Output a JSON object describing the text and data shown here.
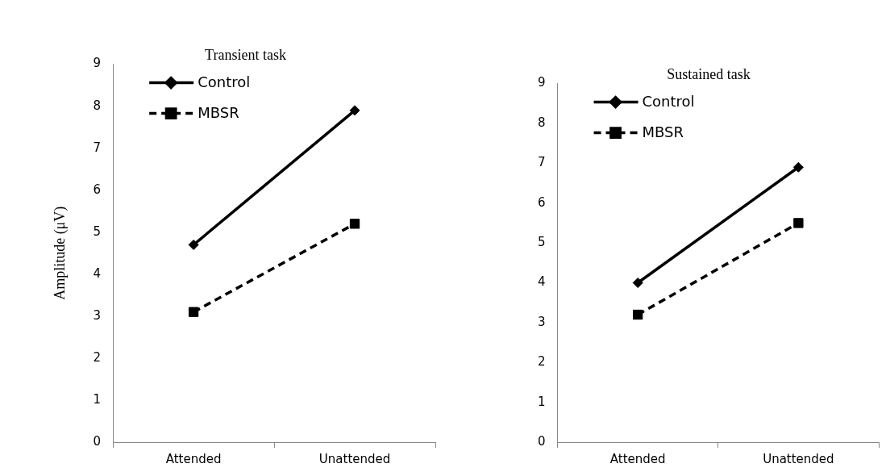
{
  "chart_data": [
    {
      "type": "line",
      "title": "Transient task",
      "ylabel": "Amplitude (μV)",
      "categories": [
        "Attended",
        "Unattended"
      ],
      "series": [
        {
          "name": "Control",
          "color": "#000000",
          "values": [
            4.7,
            7.9
          ],
          "marker": "diamond",
          "line_style": "solid"
        },
        {
          "name": "MBSR",
          "color": "#000000",
          "values": [
            3.1,
            5.2
          ],
          "marker": "square",
          "line_style": "dashed"
        }
      ],
      "ylim": [
        0,
        9
      ],
      "yticks": [
        0,
        1,
        2,
        3,
        4,
        5,
        6,
        7,
        8,
        9
      ],
      "grid": false,
      "legend": "top left"
    },
    {
      "type": "line",
      "title": "Sustained task",
      "categories": [
        "Attended",
        "Unattended"
      ],
      "series": [
        {
          "name": "Control",
          "color": "#000000",
          "values": [
            4.0,
            6.9
          ],
          "marker": "diamond",
          "line_style": "solid"
        },
        {
          "name": "MBSR",
          "color": "#000000",
          "values": [
            3.2,
            5.5
          ],
          "marker": "square",
          "line_style": "dashed"
        }
      ],
      "ylim": [
        0,
        9
      ],
      "yticks": [
        0,
        1,
        2,
        3,
        4,
        5,
        6,
        7,
        8,
        9
      ],
      "grid": false,
      "legend": "top left"
    }
  ]
}
